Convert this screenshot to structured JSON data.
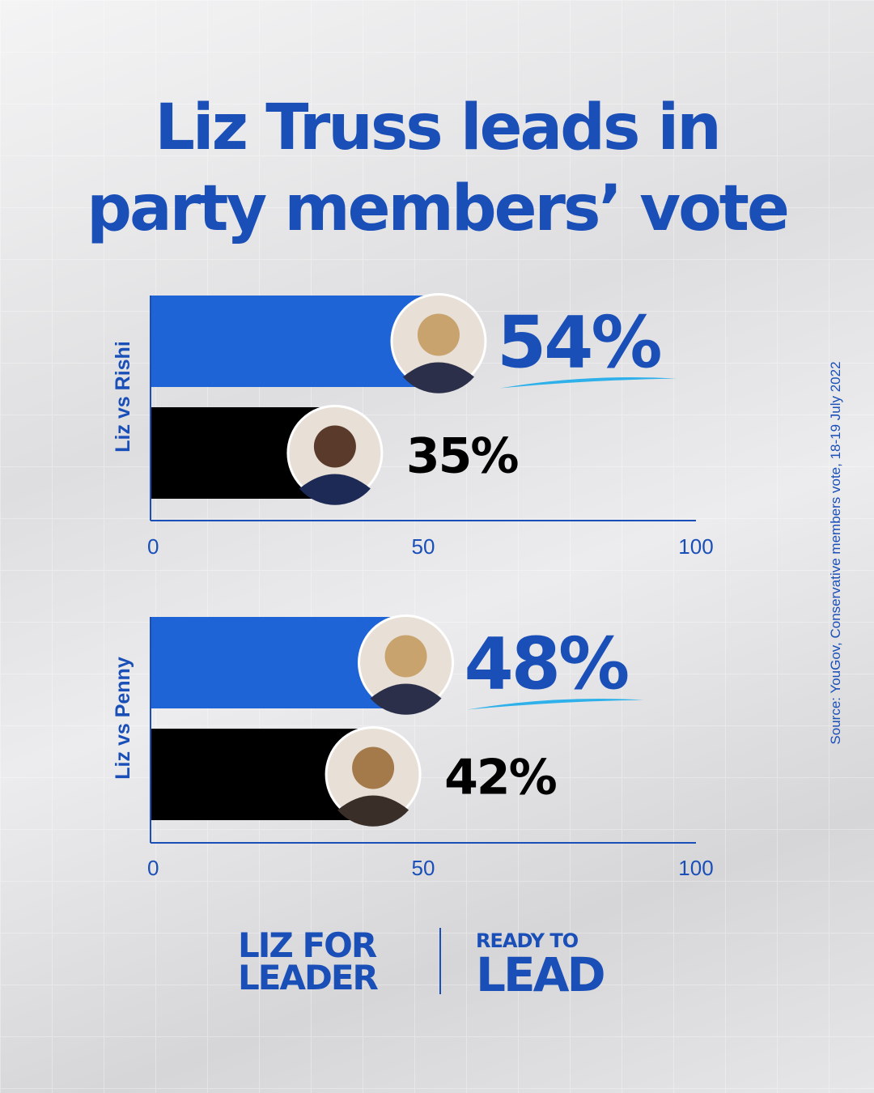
{
  "title_line1": "Liz Truss leads in",
  "title_line2": "party members’ vote",
  "source": "Source: YouGov, Conservative members vote, 18-19 July 2022",
  "logo_left_line1": "LIZ FOR",
  "logo_left_line2": "LEADER",
  "logo_right_line1": "READY TO",
  "logo_right_line2": "LEAD",
  "colors": {
    "primary": "#1a4fb8",
    "bar_liz": "#1f64d6",
    "bar_other": "#000000",
    "underline": "#2eb1ea"
  },
  "chart_data": [
    {
      "type": "bar",
      "orientation": "horizontal",
      "group_label": "Liz vs Rishi",
      "series": [
        {
          "candidate": "Liz",
          "value": 54,
          "label": "54%",
          "color": "#1f64d6",
          "highlight": true
        },
        {
          "candidate": "Rishi",
          "value": 35,
          "label": "35%",
          "color": "#000000",
          "highlight": false
        }
      ],
      "xlim": [
        0,
        100
      ],
      "xticks": [
        "0",
        "50",
        "100"
      ]
    },
    {
      "type": "bar",
      "orientation": "horizontal",
      "group_label": "Liz vs Penny",
      "series": [
        {
          "candidate": "Liz",
          "value": 48,
          "label": "48%",
          "color": "#1f64d6",
          "highlight": true
        },
        {
          "candidate": "Penny",
          "value": 42,
          "label": "42%",
          "color": "#000000",
          "highlight": false
        }
      ],
      "xlim": [
        0,
        100
      ],
      "xticks": [
        "0",
        "50",
        "100"
      ]
    }
  ]
}
